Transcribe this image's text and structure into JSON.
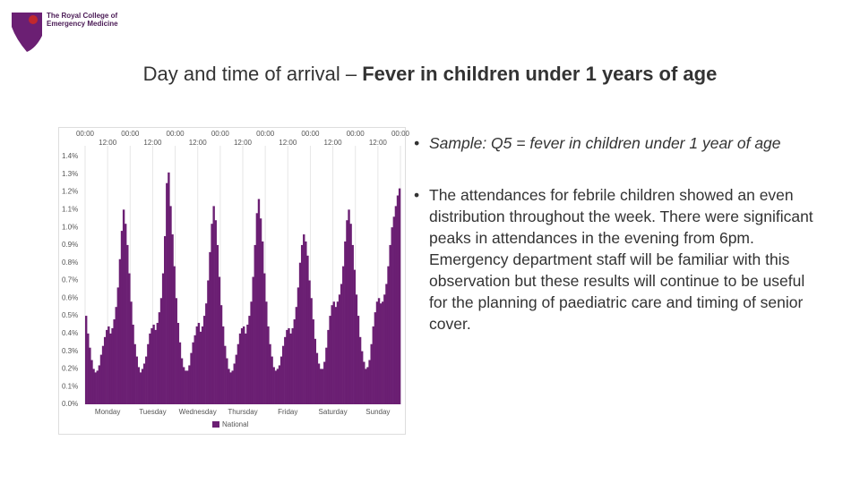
{
  "logo": {
    "line1": "The Royal College of",
    "line2": "Emergency Medicine"
  },
  "title": {
    "plain": "Day and time of arrival – ",
    "bold": "Fever in children under 1 years of age"
  },
  "bullets": [
    "Sample: Q5 = fever in children under 1 year of age",
    "The attendances for febrile children showed an even distribution throughout the week. There were significant peaks in attendances in the evening from 6pm. Emergency department staff will be familiar with this observation but these results will continue to be useful for the planning of paediatric care and timing of senior cover."
  ],
  "chart_data": {
    "type": "bar",
    "x": [
      0,
      1,
      2,
      3,
      4,
      5,
      6,
      7,
      8,
      9,
      10,
      11,
      12,
      13,
      14,
      15,
      16,
      17,
      18,
      19,
      20,
      21,
      22,
      23,
      24,
      25,
      26,
      27,
      28,
      29,
      30,
      31,
      32,
      33,
      34,
      35,
      36,
      37,
      38,
      39,
      40,
      41,
      42,
      43,
      44,
      45,
      46,
      47,
      48,
      49,
      50,
      51,
      52,
      53,
      54,
      55,
      56,
      57,
      58,
      59,
      60,
      61,
      62,
      63,
      64,
      65,
      66,
      67,
      68,
      69,
      70,
      71,
      72,
      73,
      74,
      75,
      76,
      77,
      78,
      79,
      80,
      81,
      82,
      83,
      84,
      85,
      86,
      87,
      88,
      89,
      90,
      91,
      92,
      93,
      94,
      95,
      96,
      97,
      98,
      99,
      100,
      101,
      102,
      103,
      104,
      105,
      106,
      107,
      108,
      109,
      110,
      111,
      112,
      113,
      114,
      115,
      116,
      117,
      118,
      119,
      120,
      121,
      122,
      123,
      124,
      125,
      126,
      127,
      128,
      129,
      130,
      131,
      132,
      133,
      134,
      135,
      136,
      137,
      138,
      139,
      140,
      141,
      142,
      143,
      144,
      145,
      146,
      147,
      148,
      149,
      150,
      151,
      152,
      153,
      154,
      155,
      156,
      157,
      158,
      159,
      160,
      161,
      162,
      163,
      164,
      165,
      166,
      167
    ],
    "series": [
      {
        "name": "National",
        "color": "#6b1f73",
        "values": [
          0.5,
          0.4,
          0.32,
          0.25,
          0.2,
          0.18,
          0.19,
          0.22,
          0.28,
          0.33,
          0.38,
          0.42,
          0.44,
          0.4,
          0.43,
          0.48,
          0.55,
          0.66,
          0.82,
          0.98,
          1.1,
          1.02,
          0.9,
          0.74,
          0.58,
          0.45,
          0.34,
          0.27,
          0.21,
          0.18,
          0.2,
          0.23,
          0.27,
          0.34,
          0.4,
          0.43,
          0.45,
          0.42,
          0.46,
          0.52,
          0.6,
          0.74,
          0.95,
          1.25,
          1.31,
          1.12,
          0.96,
          0.78,
          0.6,
          0.46,
          0.35,
          0.26,
          0.21,
          0.19,
          0.19,
          0.22,
          0.29,
          0.35,
          0.39,
          0.44,
          0.46,
          0.41,
          0.44,
          0.5,
          0.57,
          0.7,
          0.86,
          1.02,
          1.12,
          1.04,
          0.9,
          0.72,
          0.56,
          0.44,
          0.33,
          0.26,
          0.2,
          0.18,
          0.19,
          0.23,
          0.28,
          0.34,
          0.4,
          0.43,
          0.44,
          0.4,
          0.45,
          0.5,
          0.58,
          0.72,
          0.9,
          1.08,
          1.16,
          1.05,
          0.92,
          0.74,
          0.58,
          0.44,
          0.34,
          0.27,
          0.21,
          0.19,
          0.2,
          0.22,
          0.27,
          0.33,
          0.38,
          0.42,
          0.43,
          0.4,
          0.43,
          0.48,
          0.55,
          0.66,
          0.8,
          0.9,
          0.96,
          0.92,
          0.84,
          0.7,
          0.6,
          0.48,
          0.37,
          0.29,
          0.23,
          0.2,
          0.2,
          0.24,
          0.32,
          0.42,
          0.5,
          0.56,
          0.58,
          0.55,
          0.58,
          0.62,
          0.68,
          0.78,
          0.92,
          1.04,
          1.1,
          1.02,
          0.9,
          0.76,
          0.62,
          0.5,
          0.38,
          0.3,
          0.24,
          0.2,
          0.21,
          0.25,
          0.34,
          0.44,
          0.52,
          0.58,
          0.6,
          0.57,
          0.58,
          0.62,
          0.68,
          0.78,
          0.9,
          1.0,
          1.06,
          1.12,
          1.18,
          1.22
        ]
      }
    ],
    "xlim": [
      0,
      168
    ],
    "xticks": [
      {
        "value": 0,
        "label": "00:00"
      },
      {
        "value": 12,
        "label": "12:00"
      },
      {
        "value": 24,
        "label": "00:00"
      },
      {
        "value": 36,
        "label": "12:00"
      },
      {
        "value": 48,
        "label": "00:00"
      },
      {
        "value": 60,
        "label": "12:00"
      },
      {
        "value": 72,
        "label": "00:00"
      },
      {
        "value": 84,
        "label": "12:00"
      },
      {
        "value": 96,
        "label": "00:00"
      },
      {
        "value": 108,
        "label": "12:00"
      },
      {
        "value": 120,
        "label": "00:00"
      },
      {
        "value": 132,
        "label": "12:00"
      },
      {
        "value": 144,
        "label": "00:00"
      },
      {
        "value": 156,
        "label": "12:00"
      },
      {
        "value": 168,
        "label": "00:00"
      }
    ],
    "day_labels": [
      "Monday",
      "Tuesday",
      "Wednesday",
      "Thursday",
      "Friday",
      "Saturday",
      "Sunday"
    ],
    "ylim": [
      0,
      1.4
    ],
    "yticks": [
      {
        "value": 0,
        "label": "0.0%"
      },
      {
        "value": 0.1,
        "label": "0.1%"
      },
      {
        "value": 0.2,
        "label": "0.2%"
      },
      {
        "value": 0.3,
        "label": "0.3%"
      },
      {
        "value": 0.4,
        "label": "0.4%"
      },
      {
        "value": 0.5,
        "label": "0.5%"
      },
      {
        "value": 0.6,
        "label": "0.6%"
      },
      {
        "value": 0.7,
        "label": "0.7%"
      },
      {
        "value": 0.8,
        "label": "0.8%"
      },
      {
        "value": 0.9,
        "label": "0.9%"
      },
      {
        "value": 1.0,
        "label": "1.0%"
      },
      {
        "value": 1.1,
        "label": "1.1%"
      },
      {
        "value": 1.2,
        "label": "1.2%"
      },
      {
        "value": 1.3,
        "label": "1.3%"
      },
      {
        "value": 1.4,
        "label": "1.4%"
      }
    ],
    "grid": "x",
    "legend": "bottom"
  }
}
